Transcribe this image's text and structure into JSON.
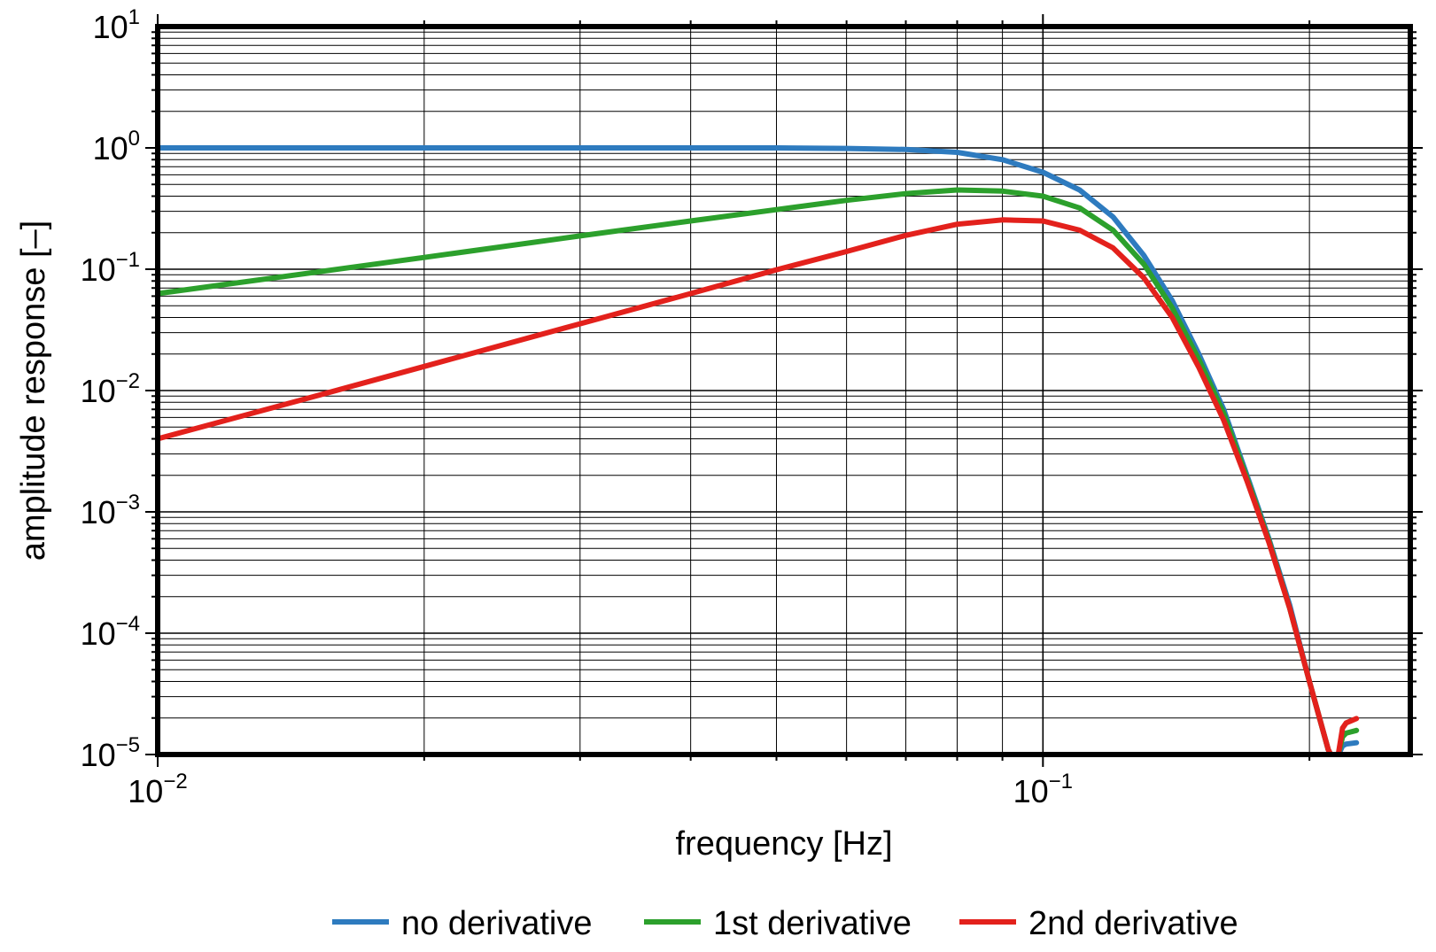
{
  "chart_data": {
    "type": "line",
    "title": "",
    "xlabel": "frequency [Hz]",
    "ylabel": "amplitude response [–]",
    "xscale": "log",
    "yscale": "log",
    "xlim": [
      0.01,
      0.26
    ],
    "ylim": [
      1e-05,
      10
    ],
    "grid": true,
    "legend_position": "bottom-center",
    "x_ticks": [
      {
        "value": 0.01,
        "base": "10",
        "exp": "−2"
      },
      {
        "value": 0.1,
        "base": "10",
        "exp": "−1"
      }
    ],
    "y_ticks": [
      {
        "value": 10,
        "base": "10",
        "exp": "1"
      },
      {
        "value": 1,
        "base": "10",
        "exp": "0"
      },
      {
        "value": 0.1,
        "base": "10",
        "exp": "−1"
      },
      {
        "value": 0.01,
        "base": "10",
        "exp": "−2"
      },
      {
        "value": 0.001,
        "base": "10",
        "exp": "−3"
      },
      {
        "value": 0.0001,
        "base": "10",
        "exp": "−4"
      },
      {
        "value": 1e-05,
        "base": "10",
        "exp": "−5"
      }
    ],
    "series": [
      {
        "name": "no derivative",
        "color": "#2e7bbf",
        "x": [
          0.01,
          0.015,
          0.02,
          0.03,
          0.04,
          0.05,
          0.06,
          0.07,
          0.08,
          0.09,
          0.1,
          0.11,
          0.12,
          0.13,
          0.14,
          0.15,
          0.16,
          0.17,
          0.18,
          0.19,
          0.2,
          0.21,
          0.215,
          0.2155,
          0.218,
          0.22,
          0.226
        ],
        "y": [
          1.0,
          1.0,
          1.0,
          1.0,
          1.0,
          1.0,
          0.99,
          0.97,
          0.92,
          0.8,
          0.63,
          0.45,
          0.27,
          0.13,
          0.055,
          0.02,
          0.007,
          0.002,
          0.0006,
          0.00017,
          4e-05,
          1.1e-05,
          7.8e-06,
          9.8e-06,
          1.18e-05,
          1.22e-05,
          1.25e-05
        ]
      },
      {
        "name": "1st derivative",
        "color": "#2ca02c",
        "x": [
          0.01,
          0.015,
          0.02,
          0.03,
          0.04,
          0.05,
          0.06,
          0.07,
          0.08,
          0.09,
          0.1,
          0.11,
          0.12,
          0.13,
          0.14,
          0.15,
          0.16,
          0.17,
          0.18,
          0.19,
          0.2,
          0.21,
          0.215,
          0.2155,
          0.218,
          0.22,
          0.226
        ],
        "y": [
          0.063,
          0.094,
          0.125,
          0.188,
          0.25,
          0.31,
          0.37,
          0.42,
          0.45,
          0.44,
          0.4,
          0.32,
          0.21,
          0.11,
          0.048,
          0.018,
          0.0065,
          0.0019,
          0.00058,
          0.00016,
          4e-05,
          1.1e-05,
          7.8e-06,
          9.8e-06,
          1.4e-05,
          1.5e-05,
          1.58e-05
        ]
      },
      {
        "name": "2nd derivative",
        "color": "#e3211c",
        "x": [
          0.01,
          0.015,
          0.02,
          0.03,
          0.04,
          0.05,
          0.06,
          0.07,
          0.08,
          0.09,
          0.1,
          0.11,
          0.12,
          0.13,
          0.14,
          0.15,
          0.16,
          0.17,
          0.18,
          0.19,
          0.2,
          0.21,
          0.215,
          0.2155,
          0.218,
          0.22,
          0.226
        ],
        "y": [
          0.004,
          0.0089,
          0.0158,
          0.0355,
          0.063,
          0.099,
          0.14,
          0.19,
          0.235,
          0.255,
          0.25,
          0.21,
          0.15,
          0.085,
          0.04,
          0.0155,
          0.0057,
          0.0018,
          0.00056,
          0.00016,
          4e-05,
          1.1e-05,
          7.8e-06,
          9.8e-06,
          1.65e-05,
          1.82e-05,
          1.98e-05
        ]
      }
    ]
  }
}
